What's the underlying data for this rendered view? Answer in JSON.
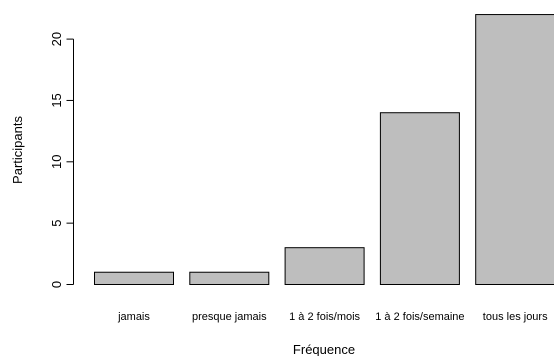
{
  "chart_data": {
    "type": "bar",
    "categories": [
      "jamais",
      "presque jamais",
      "1 à 2 fois/mois",
      "1 à 2 fois/semaine",
      "tous les jours"
    ],
    "values": [
      1,
      1,
      3,
      14,
      22
    ],
    "xlabel": "Fréquence",
    "ylabel": "Participants",
    "yticks": [
      0,
      5,
      10,
      15,
      20
    ],
    "ylim": [
      0,
      22
    ],
    "grid": false,
    "bar_color": "#bebebe",
    "bar_border_color": "#000000"
  }
}
